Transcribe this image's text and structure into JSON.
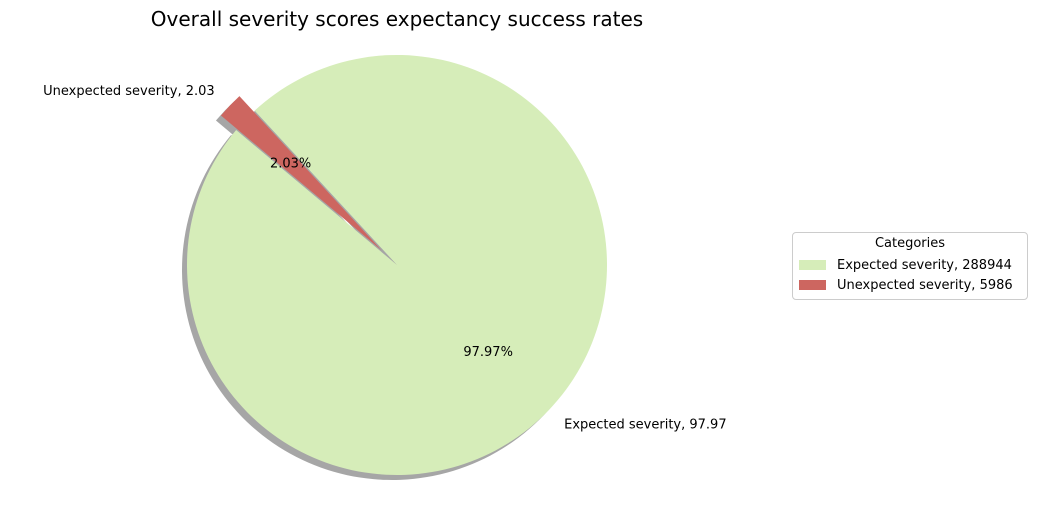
{
  "chart_data": {
    "type": "pie",
    "title": "Overall severity scores expectancy success rates",
    "slices": [
      {
        "label": "Expected severity, 97.97",
        "percent_label": "97.97%",
        "value": 97.97,
        "color": "#d6edb9",
        "exploded": false
      },
      {
        "label": "Unexpected severity, 2.03",
        "percent_label": "2.03%",
        "value": 2.03,
        "color": "#cd6660",
        "exploded": true
      }
    ],
    "shadow": true,
    "legend": {
      "title": "Categories",
      "placement": "right",
      "entries": [
        {
          "label": "Expected severity, 288944",
          "color": "#d6edb9"
        },
        {
          "label": "Unexpected severity, 5986",
          "color": "#cd6660"
        }
      ]
    }
  }
}
